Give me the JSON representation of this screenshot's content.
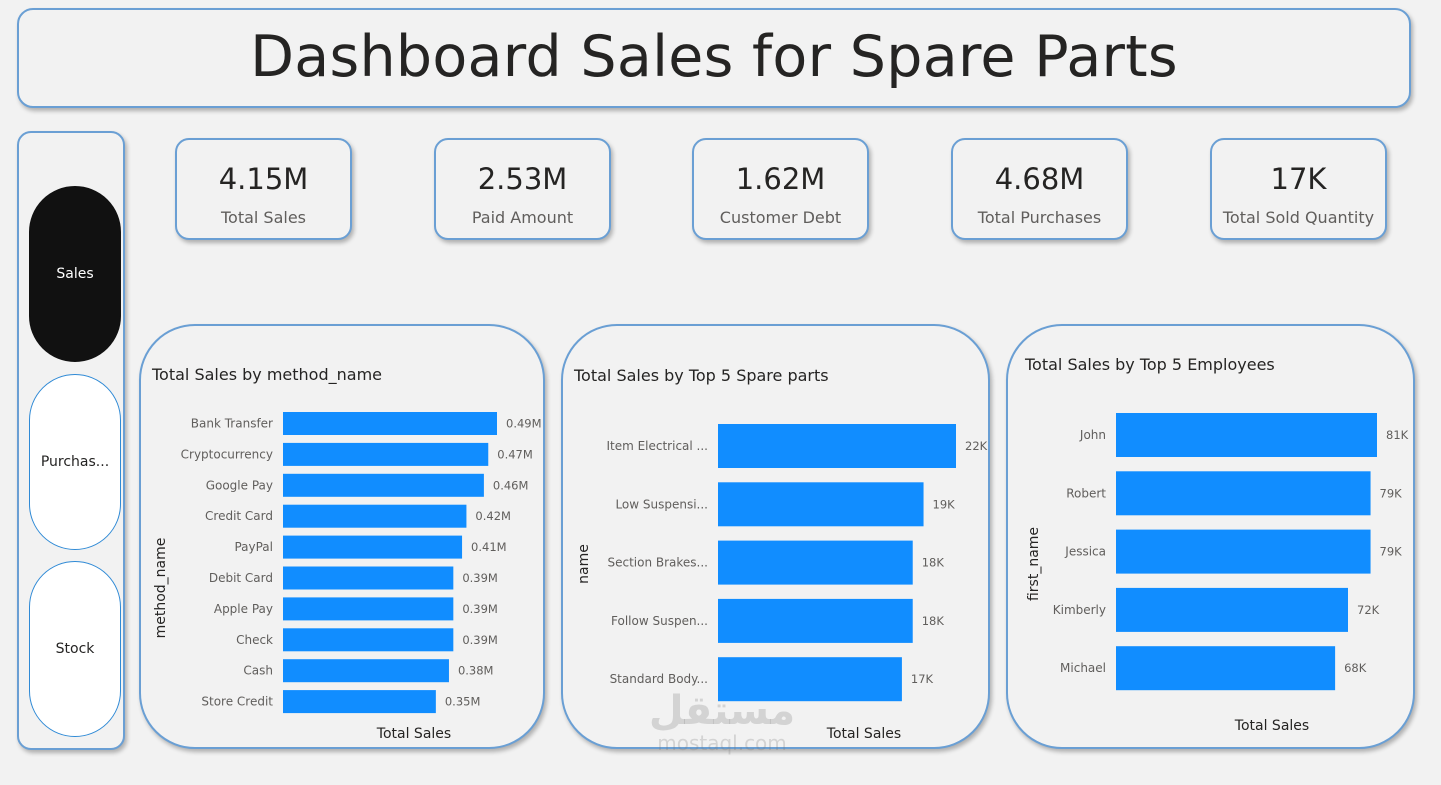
{
  "header": {
    "title": "Dashboard Sales for Spare Parts"
  },
  "nav": {
    "items": [
      {
        "label": "Sales",
        "active": true
      },
      {
        "label": "Purchas...",
        "active": false
      },
      {
        "label": "Stock",
        "active": false
      }
    ]
  },
  "kpis": [
    {
      "value": "4.15M",
      "label": "Total Sales"
    },
    {
      "value": "2.53M",
      "label": "Paid Amount"
    },
    {
      "value": "1.62M",
      "label": "Customer Debt"
    },
    {
      "value": "4.68M",
      "label": "Total Purchases"
    },
    {
      "value": "17K",
      "label": "Total Sold Quantity"
    }
  ],
  "colors": {
    "bar": "#118dff",
    "border": "#6a9fd4",
    "background": "#f2f2f2",
    "active_nav": "#111111"
  },
  "chart_data": [
    {
      "type": "bar",
      "orientation": "horizontal",
      "title": "Total Sales by method_name",
      "xlabel": "Total Sales",
      "ylabel": "method_name",
      "categories": [
        "Bank Transfer",
        "Cryptocurrency",
        "Google Pay",
        "Credit Card",
        "PayPal",
        "Debit Card",
        "Apple Pay",
        "Check",
        "Cash",
        "Store Credit"
      ],
      "values": [
        0.49,
        0.47,
        0.46,
        0.42,
        0.41,
        0.39,
        0.39,
        0.39,
        0.38,
        0.35
      ],
      "value_labels": [
        "0.49M",
        "0.47M",
        "0.46M",
        "0.42M",
        "0.41M",
        "0.39M",
        "0.39M",
        "0.39M",
        "0.38M",
        "0.35M"
      ],
      "xlim": [
        0,
        0.49
      ],
      "unit": "M"
    },
    {
      "type": "bar",
      "orientation": "horizontal",
      "title": "Total Sales by Top 5 Spare parts",
      "xlabel": "Total Sales",
      "ylabel": "name",
      "categories": [
        "Item Electrical ...",
        "Low Suspensi...",
        "Section Brakes...",
        "Follow Suspen...",
        "Standard Body..."
      ],
      "values": [
        22,
        19,
        18,
        18,
        17
      ],
      "value_labels": [
        "22K",
        "19K",
        "18K",
        "18K",
        "17K"
      ],
      "xlim": [
        0,
        22
      ],
      "unit": "K"
    },
    {
      "type": "bar",
      "orientation": "horizontal",
      "title": "Total Sales by Top 5 Employees",
      "xlabel": "Total Sales",
      "ylabel": "first_name",
      "categories": [
        "John",
        "Robert",
        "Jessica",
        "Kimberly",
        "Michael"
      ],
      "values": [
        81,
        79,
        79,
        72,
        68
      ],
      "value_labels": [
        "81K",
        "79K",
        "79K",
        "72K",
        "68K"
      ],
      "xlim": [
        0,
        81
      ],
      "unit": "K"
    }
  ],
  "watermark": {
    "arabic": "مستقل",
    "latin": "mostaql.com"
  }
}
